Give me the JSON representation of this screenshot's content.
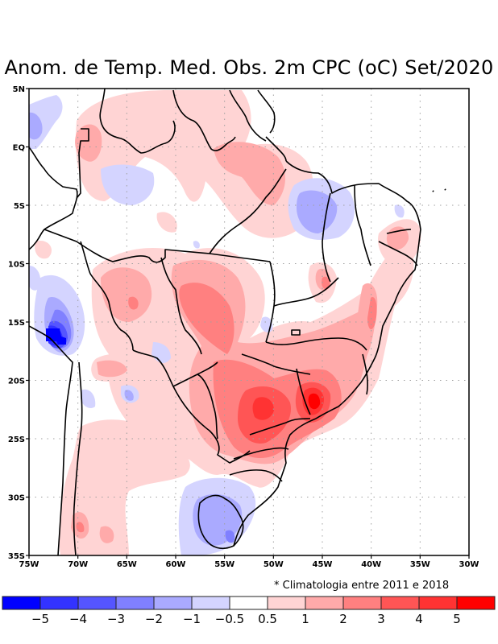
{
  "title": "Anom. de Temp. Med. Obs. 2m CPC (oC) Set/2020",
  "note": "* Climatologia entre 2011 e 2018",
  "chart_data": {
    "type": "heatmap",
    "title": "Anom. de Temp. Med. Obs. 2m CPC (oC) Set/2020",
    "variable": "2m mean temperature anomaly",
    "units": "oC",
    "region": "Brazil / South America",
    "xlim": [
      -75,
      -30
    ],
    "ylim": [
      -35,
      5
    ],
    "x_ticks": [
      {
        "value": -75,
        "label": "75W"
      },
      {
        "value": -70,
        "label": "70W"
      },
      {
        "value": -65,
        "label": "65W"
      },
      {
        "value": -60,
        "label": "60W"
      },
      {
        "value": -55,
        "label": "55W"
      },
      {
        "value": -50,
        "label": "50W"
      },
      {
        "value": -45,
        "label": "45W"
      },
      {
        "value": -40,
        "label": "40W"
      },
      {
        "value": -35,
        "label": "35W"
      },
      {
        "value": -30,
        "label": "30W"
      }
    ],
    "y_ticks": [
      {
        "value": 5,
        "label": "5N"
      },
      {
        "value": 0,
        "label": "EQ"
      },
      {
        "value": -5,
        "label": "5S"
      },
      {
        "value": -10,
        "label": "10S"
      },
      {
        "value": -15,
        "label": "15S"
      },
      {
        "value": -20,
        "label": "20S"
      },
      {
        "value": -25,
        "label": "25S"
      },
      {
        "value": -30,
        "label": "30S"
      },
      {
        "value": -35,
        "label": "35S"
      }
    ],
    "grid": "dotted",
    "colorbar": {
      "levels": [
        "-5",
        "-4",
        "-3",
        "-2",
        "-1",
        "-0.5",
        "0.5",
        "1",
        "2",
        "3",
        "4",
        "5"
      ],
      "colors": [
        "#0000ff",
        "#3333ff",
        "#5555ff",
        "#8080ff",
        "#aaaaff",
        "#d4d4ff",
        "#ffffff",
        "#ffd4d4",
        "#ffaaaa",
        "#ff8080",
        "#ff5555",
        "#ff3333",
        "#ff0000"
      ]
    },
    "features": [
      {
        "name": "strong-cold-anomaly-bolivia-peru",
        "lon": -72,
        "lat": -16,
        "value_range": "< -5"
      },
      {
        "name": "cold-anomaly-north-maranhao-piaui",
        "lon": -46,
        "lat": -6,
        "value_range": "-2 to -1"
      },
      {
        "name": "cold-anomaly-uruguay-rs",
        "lon": -55,
        "lat": -32,
        "value_range": "-2 to -1"
      },
      {
        "name": "cold-anomaly-amazonas",
        "lon": -63,
        "lat": -3,
        "value_range": "-1 to -0.5"
      },
      {
        "name": "warm-anomaly-sao-paulo-minas",
        "lon": -46,
        "lat": -21.5,
        "value_range": "> 5"
      },
      {
        "name": "warm-anomaly-mato-grosso-sul-parana",
        "lon": -52,
        "lat": -23,
        "value_range": "3 to 4"
      },
      {
        "name": "warm-anomaly-mato-grosso",
        "lon": -58,
        "lat": -14,
        "value_range": "2 to 3"
      },
      {
        "name": "warm-anomaly-para",
        "lon": -53,
        "lat": -2,
        "value_range": "1 to 2"
      },
      {
        "name": "warm-anomaly-bahia-east",
        "lon": -40,
        "lat": -16,
        "value_range": "2 to 3"
      }
    ]
  }
}
